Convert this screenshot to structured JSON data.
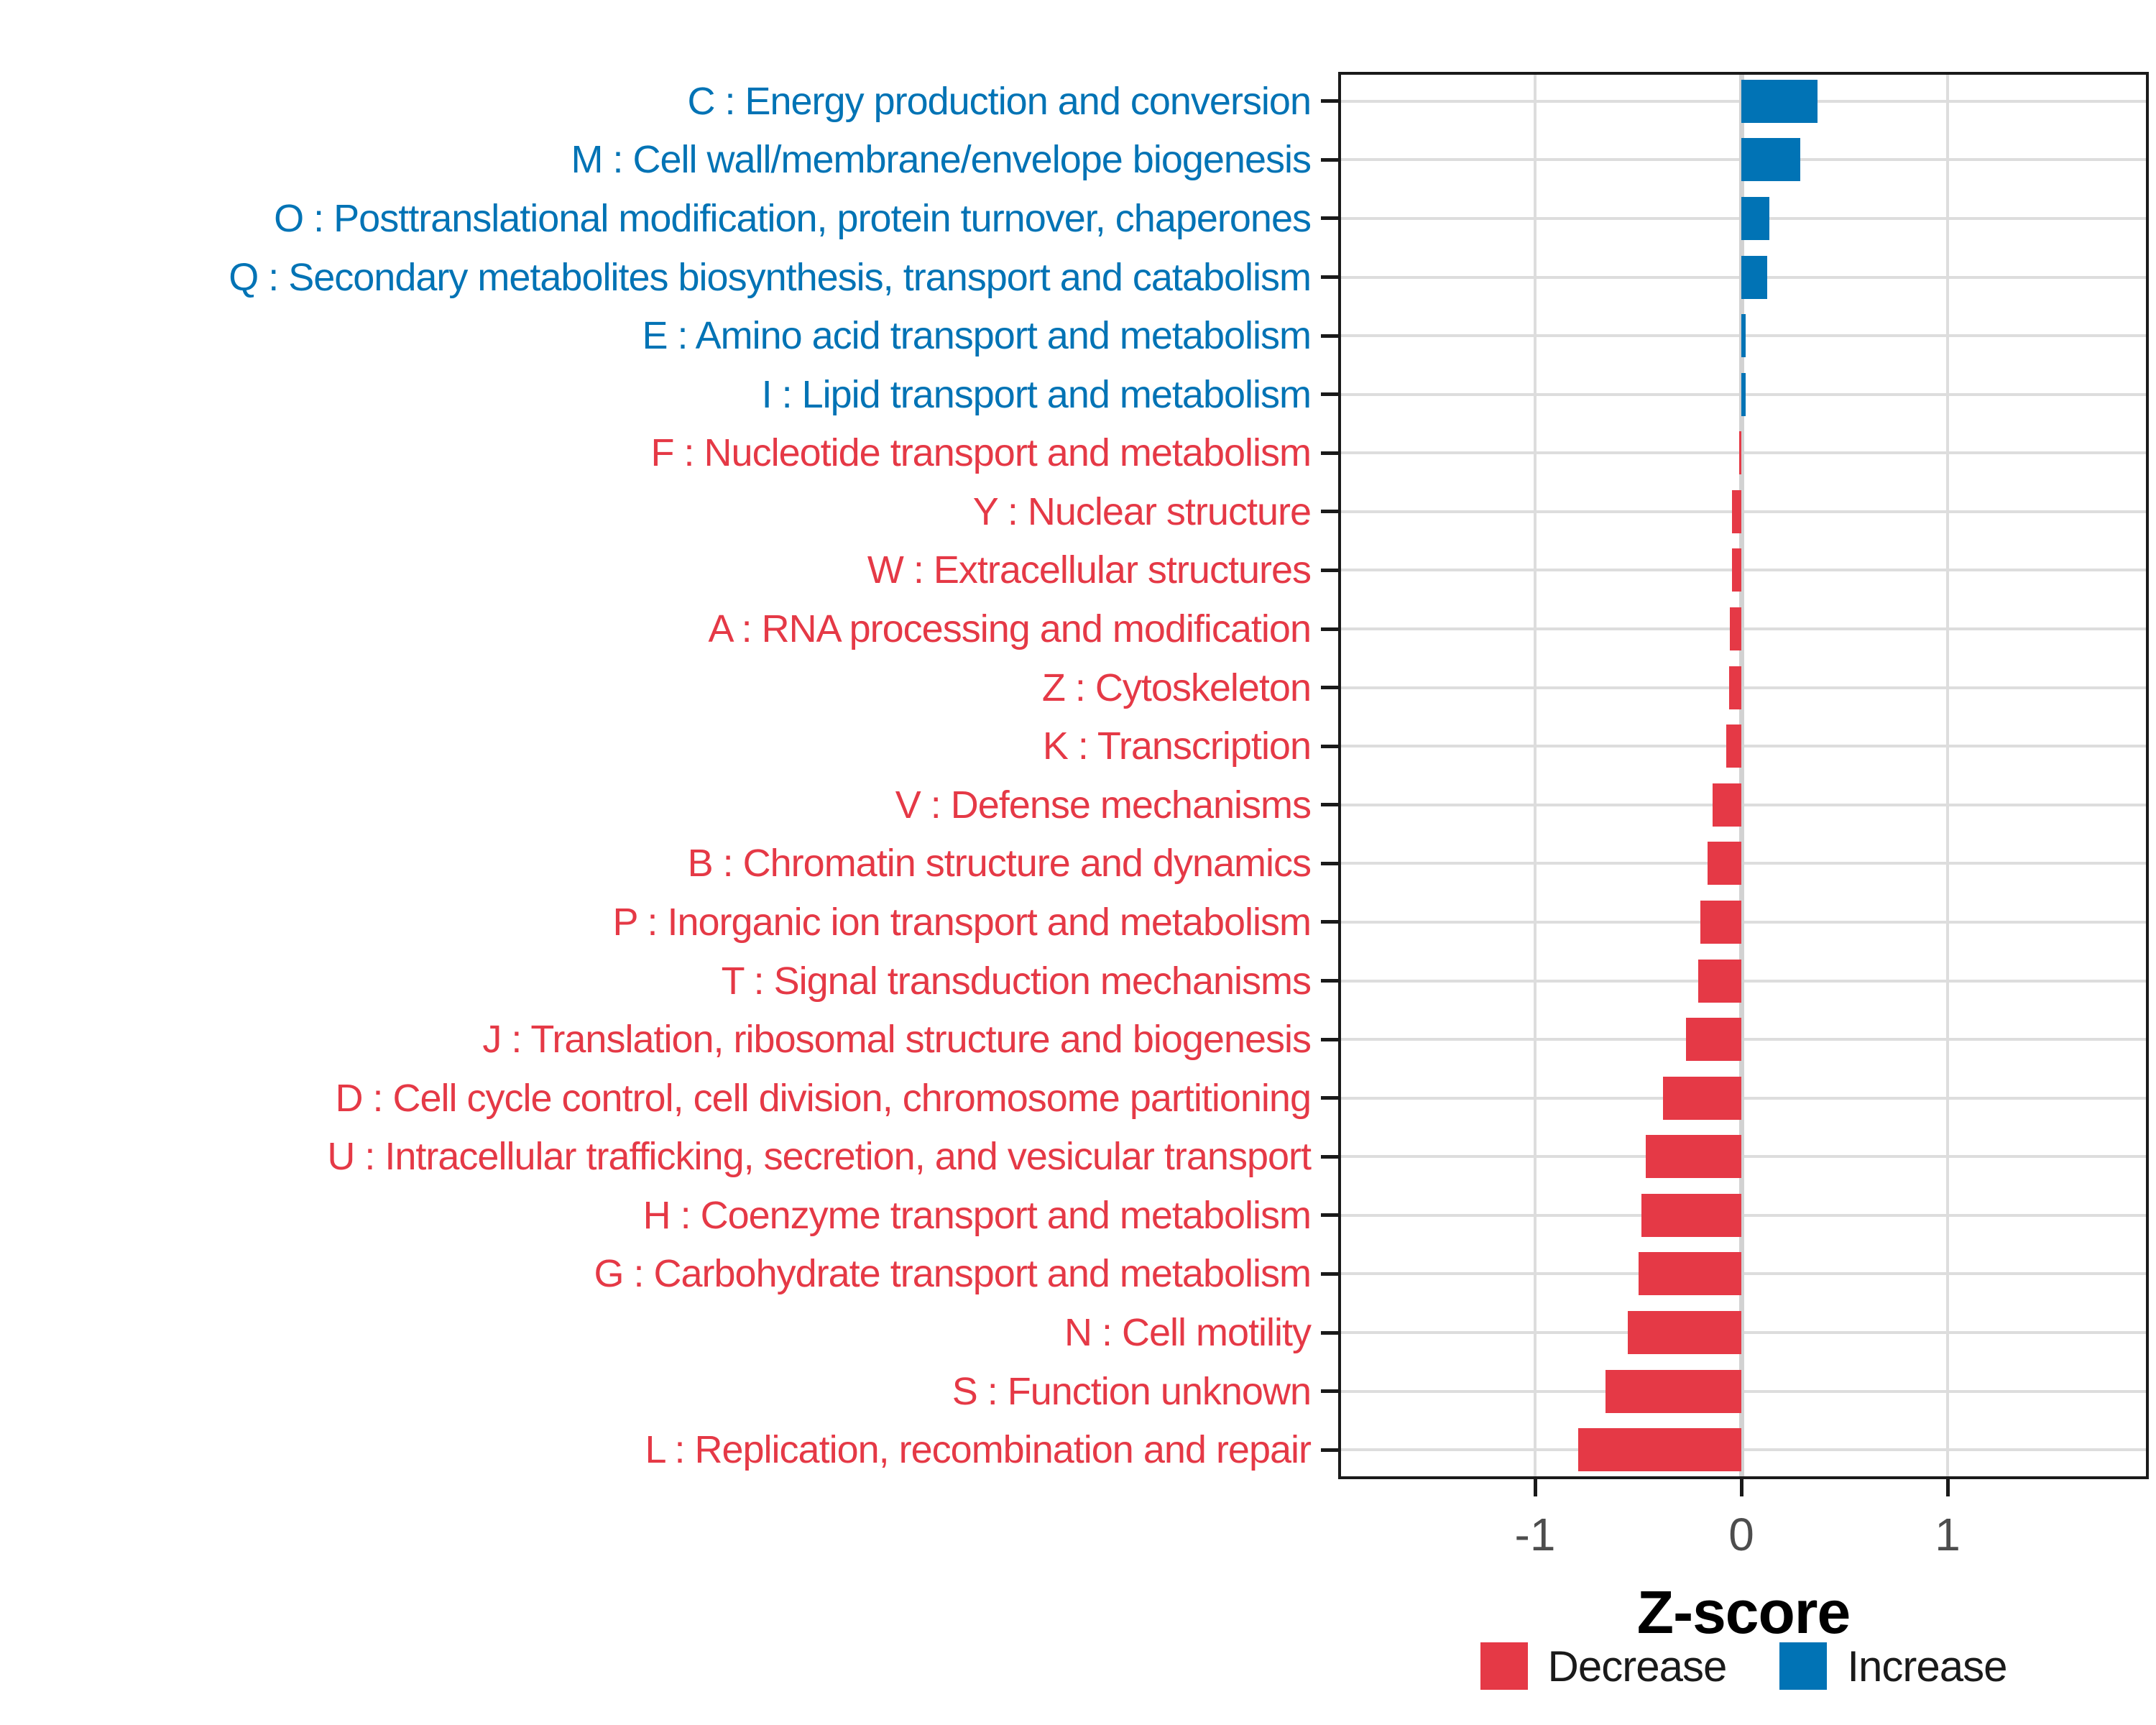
{
  "chart_data": {
    "type": "bar",
    "orientation": "horizontal",
    "xlabel": "Z-score",
    "xlim": [
      -1.955,
      1.975
    ],
    "x_ticks": [
      {
        "value": -1,
        "label": "-1"
      },
      {
        "value": 0,
        "label": "0"
      },
      {
        "value": 1,
        "label": "1"
      }
    ],
    "grid": "on",
    "legend_position": "bottom",
    "categories": [
      {
        "label": "C : Energy production and conversion",
        "value": 0.37,
        "group": "increase"
      },
      {
        "label": "M : Cell wall/membrane/envelope biogenesis",
        "value": 0.285,
        "group": "increase"
      },
      {
        "label": "O : Posttranslational modification, protein turnover, chaperones",
        "value": 0.135,
        "group": "increase"
      },
      {
        "label": "Q : Secondary metabolites biosynthesis, transport and catabolism",
        "value": 0.125,
        "group": "increase"
      },
      {
        "label": "E : Amino acid transport and metabolism",
        "value": 0.022,
        "group": "increase"
      },
      {
        "label": "I : Lipid transport and metabolism",
        "value": 0.02,
        "group": "increase"
      },
      {
        "label": "F : Nucleotide transport and metabolism",
        "value": -0.012,
        "group": "decrease"
      },
      {
        "label": "Y : Nuclear structure",
        "value": -0.045,
        "group": "decrease"
      },
      {
        "label": "W : Extracellular structures",
        "value": -0.045,
        "group": "decrease"
      },
      {
        "label": "A : RNA processing and modification",
        "value": -0.055,
        "group": "decrease"
      },
      {
        "label": "Z : Cytoskeleton",
        "value": -0.06,
        "group": "decrease"
      },
      {
        "label": "K : Transcription",
        "value": -0.072,
        "group": "decrease"
      },
      {
        "label": "V : Defense mechanisms",
        "value": -0.14,
        "group": "decrease"
      },
      {
        "label": "B : Chromatin structure and dynamics",
        "value": -0.165,
        "group": "decrease"
      },
      {
        "label": "P : Inorganic ion transport and metabolism",
        "value": -0.2,
        "group": "decrease"
      },
      {
        "label": "T : Signal transduction mechanisms",
        "value": -0.21,
        "group": "decrease"
      },
      {
        "label": "J : Translation, ribosomal structure and biogenesis",
        "value": -0.27,
        "group": "decrease"
      },
      {
        "label": "D : Cell cycle control, cell division, chromosome partitioning",
        "value": -0.38,
        "group": "decrease"
      },
      {
        "label": "U : Intracellular trafficking, secretion, and vesicular transport",
        "value": -0.465,
        "group": "decrease"
      },
      {
        "label": "H : Coenzyme transport and metabolism",
        "value": -0.485,
        "group": "decrease"
      },
      {
        "label": "G : Carbohydrate transport and metabolism",
        "value": -0.5,
        "group": "decrease"
      },
      {
        "label": "N : Cell motility",
        "value": -0.55,
        "group": "decrease"
      },
      {
        "label": "S : Function unknown",
        "value": -0.66,
        "group": "decrease"
      },
      {
        "label": "L : Replication, recombination and repair",
        "value": -0.79,
        "group": "decrease"
      }
    ],
    "legend": [
      {
        "label": "Decrease",
        "group": "decrease",
        "color": "#E53946"
      },
      {
        "label": "Increase",
        "group": "increase",
        "color": "#0173B5"
      }
    ],
    "colors": {
      "decrease": "#E53946",
      "increase": "#0173B5"
    }
  }
}
